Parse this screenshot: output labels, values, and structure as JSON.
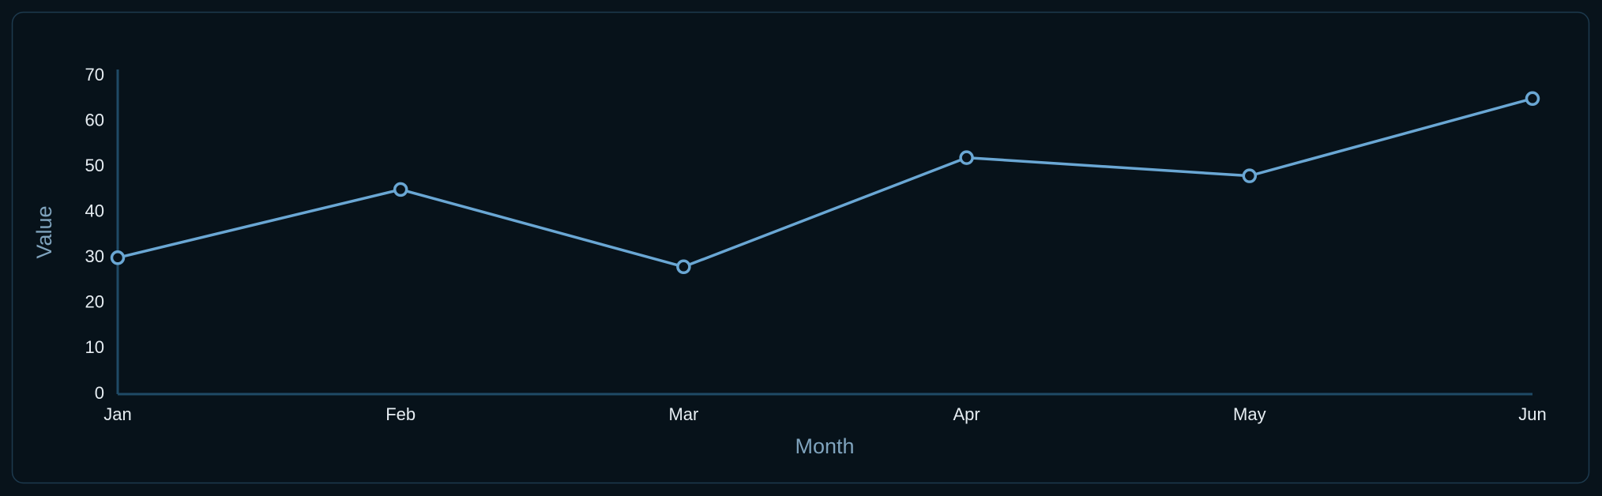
{
  "chart_data": {
    "type": "line",
    "x_label": "Month",
    "y_label": "Value",
    "categories": [
      "Jan",
      "Feb",
      "Mar",
      "Apr",
      "May",
      "Jun"
    ],
    "values": [
      30,
      45,
      28,
      52,
      48,
      65
    ],
    "color": "#6aa7d4",
    "ylim": [
      0,
      70
    ],
    "yticks": [
      0,
      10,
      20,
      30,
      40,
      50,
      60,
      70
    ],
    "grid": false
  }
}
